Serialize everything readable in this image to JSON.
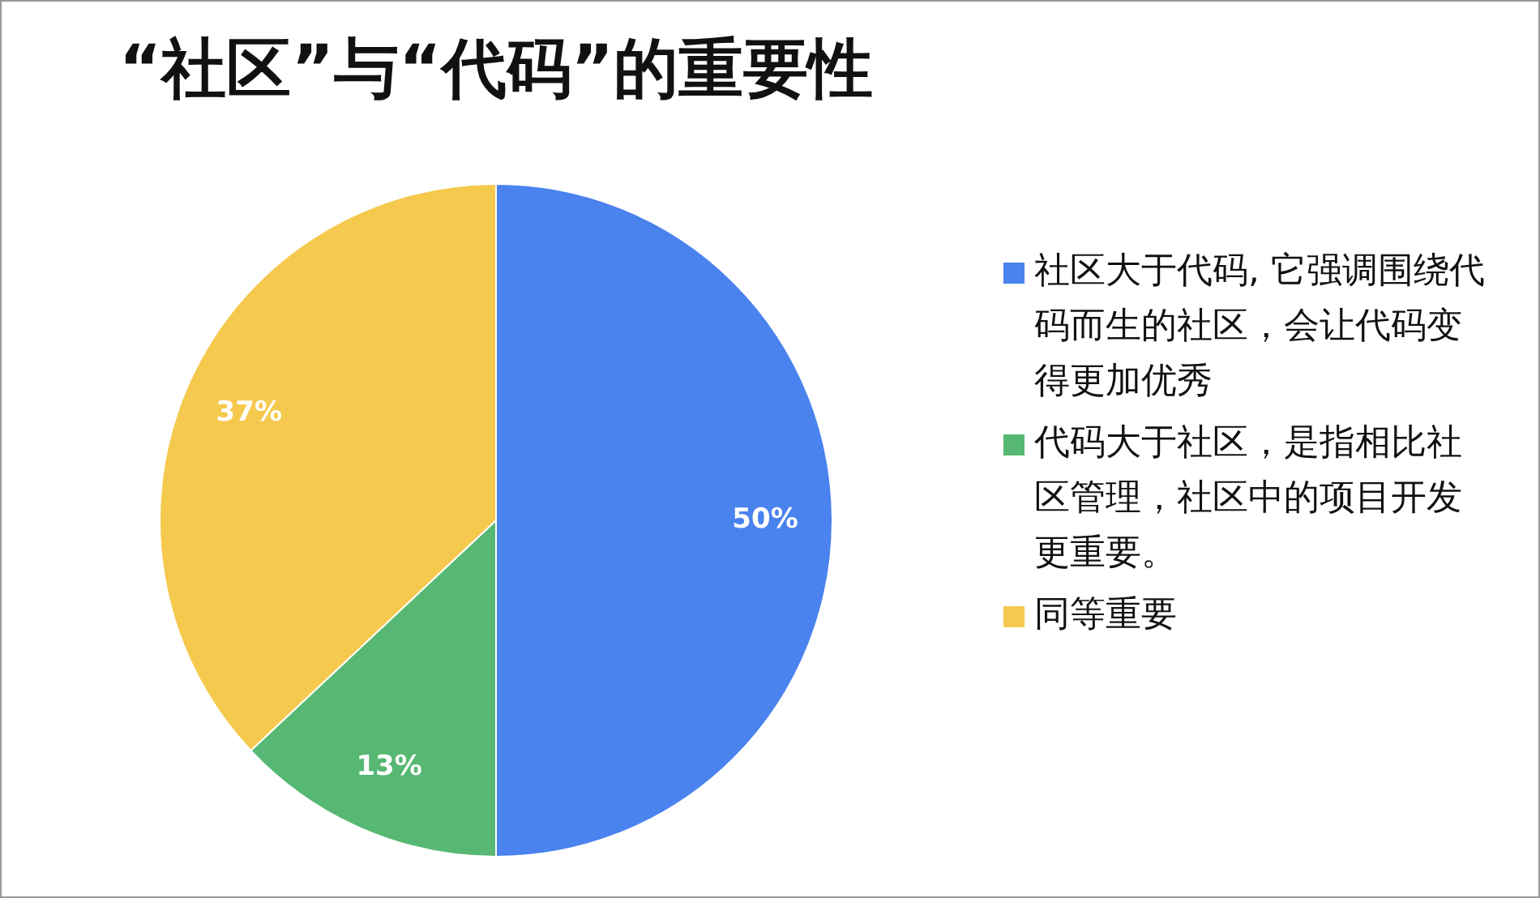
{
  "chart_data": {
    "type": "pie",
    "title": "“社区”与“代码”的重要性",
    "categories": [
      "社区大于代码, 它强调围绕代码而生的社区，会让代码变得更加优秀",
      "代码大于社区，是指相比社区管理，社区中的项目开发更重要。",
      "同等重要"
    ],
    "values": [
      50,
      13,
      37
    ],
    "colors": [
      "#4a82ee",
      "#56b872",
      "#f5c94e"
    ],
    "value_labels": [
      "50%",
      "13%",
      "37%"
    ],
    "legend": "right"
  }
}
